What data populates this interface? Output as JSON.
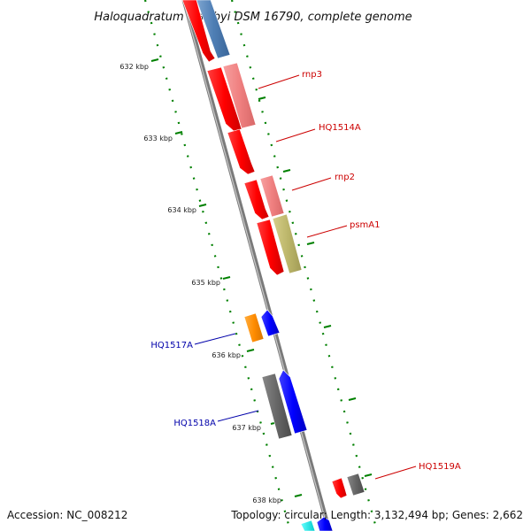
{
  "title": "Haloquadratum walsbyi DSM 16790, complete genome",
  "footer": {
    "accession": "Accession: NC_008212",
    "summary": "Topology: circular; Length: 3,132,494 bp; Genes: 2,662"
  },
  "ticks": [
    "632 kbp",
    "633 kbp",
    "634 kbp",
    "635 kbp",
    "636 kbp",
    "637 kbp",
    "638 kbp"
  ],
  "labels": {
    "rnp3": "rnp3",
    "hq1514a": "HQ1514A",
    "rnp2": "rnp2",
    "psma1": "psmA1",
    "hq1517a": "HQ1517A",
    "hq1518a": "HQ1518A",
    "hq1519a": "HQ1519A"
  },
  "colors": {
    "forward_gene": "#ff0000",
    "pseudo_gene": "#f08080",
    "rna_gene": "#4f7fb5",
    "olive_gene": "#bdb76b",
    "orange_gene": "#ff8c00",
    "reverse_gene": "#0000ff",
    "gray_gene": "#666666",
    "forward_label": "#cc0000",
    "reverse_label": "#0000aa",
    "tick": "#008000"
  }
}
